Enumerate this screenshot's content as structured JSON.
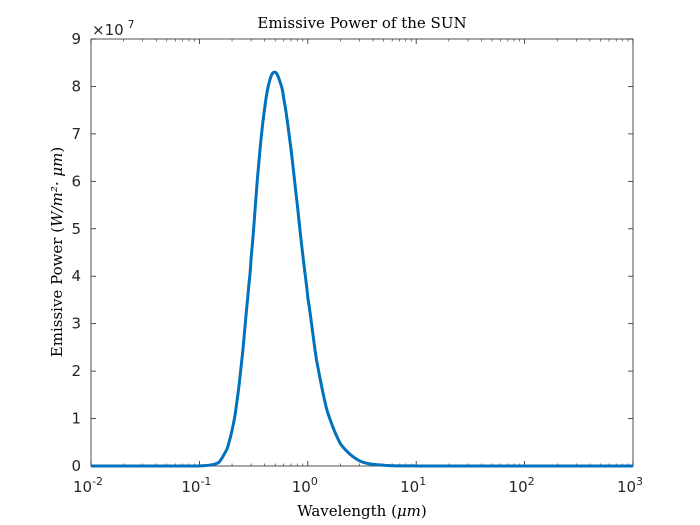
{
  "chart_data": {
    "type": "line",
    "title": "Emissive Power of the SUN",
    "xlabel_text": "Wavelength",
    "xlabel_unit": "μm",
    "ylabel_text": "Emissive Power",
    "ylabel_unit": "W/m²· μm",
    "x_scale": "log",
    "xlim": [
      0.01,
      1000
    ],
    "ylim": [
      0,
      90000000
    ],
    "y_multiplier": "×10",
    "y_multiplier_exp": "7",
    "x_ticks": [
      {
        "value": 0.01,
        "base": "10",
        "exp": "-2"
      },
      {
        "value": 0.1,
        "base": "10",
        "exp": "-1"
      },
      {
        "value": 1,
        "base": "10",
        "exp": "0"
      },
      {
        "value": 10,
        "base": "10",
        "exp": "1"
      },
      {
        "value": 100,
        "base": "10",
        "exp": "2"
      },
      {
        "value": 1000,
        "base": "10",
        "exp": "3"
      }
    ],
    "y_ticks": [
      {
        "value": 0,
        "label": "0"
      },
      {
        "value": 10000000,
        "label": "1"
      },
      {
        "value": 20000000,
        "label": "2"
      },
      {
        "value": 30000000,
        "label": "3"
      },
      {
        "value": 40000000,
        "label": "4"
      },
      {
        "value": 50000000,
        "label": "5"
      },
      {
        "value": 60000000,
        "label": "6"
      },
      {
        "value": 70000000,
        "label": "7"
      },
      {
        "value": 80000000,
        "label": "8"
      },
      {
        "value": 90000000,
        "label": "9"
      }
    ],
    "grid": false,
    "series": [
      {
        "color": "#0072BD",
        "x": [
          0.01,
          0.1,
          0.15,
          0.18,
          0.2,
          0.22,
          0.25,
          0.28,
          0.3,
          0.35,
          0.4,
          0.45,
          0.5,
          0.55,
          0.6,
          0.7,
          0.8,
          0.9,
          1.0,
          1.2,
          1.5,
          2.0,
          3.0,
          5.0,
          10.0,
          100.0,
          1000.0
        ],
        "y": [
          0,
          0,
          700000,
          3600000,
          7500000,
          13000000,
          23700000,
          35700000,
          44000000,
          62800000,
          75400000,
          81600000,
          83000000,
          81200000,
          77400000,
          66800000,
          55100000,
          44400000,
          35500000,
          22500000,
          11800000,
          4680000,
          1080000,
          158000,
          10900,
          1.3,
          0.0001
        ]
      }
    ]
  }
}
